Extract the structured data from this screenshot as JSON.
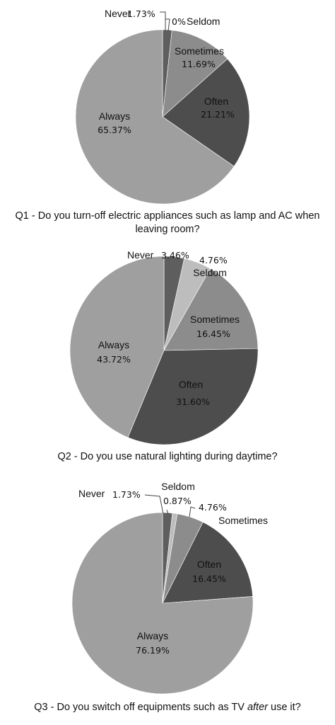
{
  "chart_data": [
    {
      "type": "pie",
      "title": "Q1 - Do you turn-off electric appliances such as lamp and AC when leaving room?",
      "categories": [
        "Never",
        "Seldom",
        "Sometimes",
        "Often",
        "Always"
      ],
      "values": [
        1.73,
        0,
        11.69,
        21.21,
        65.37
      ],
      "value_labels": [
        "1.73%",
        "0%",
        "11.69%",
        "21.21%",
        "65.37%"
      ],
      "colors": [
        "#5e5e5e",
        "#bdbdbd",
        "#8c8c8c",
        "#4d4d4d",
        "#9f9f9f"
      ]
    },
    {
      "type": "pie",
      "title": "Q2 - Do you use natural lighting during daytime?",
      "categories": [
        "Never",
        "Seldom",
        "Sometimes",
        "Often",
        "Always"
      ],
      "values": [
        3.46,
        4.76,
        16.45,
        31.6,
        43.72
      ],
      "value_labels": [
        "3.46%",
        "4.76%",
        "16.45%",
        "31.60%",
        "43.72%"
      ],
      "colors": [
        "#5e5e5e",
        "#bdbdbd",
        "#8c8c8c",
        "#4d4d4d",
        "#9f9f9f"
      ]
    },
    {
      "type": "pie",
      "title_parts": [
        "Q3 - Do you switch off equipments such as TV ",
        "after",
        " use it?"
      ],
      "categories": [
        "Never",
        "Seldom",
        "Sometimes",
        "Often",
        "Always"
      ],
      "values": [
        1.73,
        0.87,
        4.76,
        16.45,
        76.19
      ],
      "value_labels": [
        "1.73%",
        "0.87%",
        "4.76%",
        "16.45%",
        "76.19%"
      ],
      "colors": [
        "#5e5e5e",
        "#bdbdbd",
        "#8c8c8c",
        "#4d4d4d",
        "#9f9f9f"
      ]
    }
  ]
}
